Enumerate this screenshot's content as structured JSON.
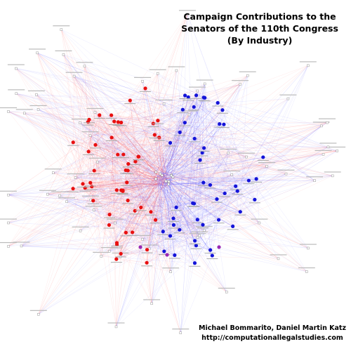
{
  "title": [
    "Campaign Contributions to the",
    "Senators of the 110th Congress",
    "(By Industry)"
  ],
  "credits": {
    "authors": "Michael Bommarito, Daniel Martin Katz",
    "url": "http://computationallegalstudies.com"
  }
}
